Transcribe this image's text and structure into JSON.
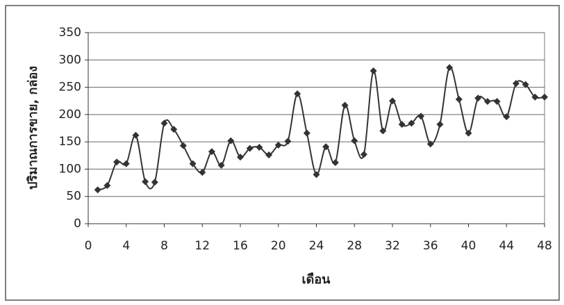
{
  "chart_data": {
    "type": "line",
    "x_label": "เดือน",
    "y_label": "ปริมาณการขาย, กล่อง",
    "x": [
      1,
      2,
      3,
      4,
      5,
      6,
      7,
      8,
      9,
      10,
      11,
      12,
      13,
      14,
      15,
      16,
      17,
      18,
      19,
      20,
      21,
      22,
      23,
      24,
      25,
      26,
      27,
      28,
      29,
      30,
      31,
      32,
      33,
      34,
      35,
      36,
      37,
      38,
      39,
      40,
      41,
      42,
      43,
      44,
      45,
      46,
      47,
      48
    ],
    "series": [
      {
        "color": "#333333",
        "values": [
          62,
          70,
          113,
          110,
          162,
          77,
          76,
          184,
          173,
          143,
          110,
          94,
          132,
          107,
          152,
          122,
          138,
          140,
          126,
          144,
          151,
          238,
          166,
          90,
          141,
          112,
          217,
          152,
          127,
          280,
          170,
          225,
          182,
          184,
          197,
          146,
          182,
          286,
          228,
          166,
          230,
          224,
          224,
          196,
          257,
          255,
          232,
          232
        ]
      }
    ],
    "xlim": [
      0,
      48
    ],
    "xticks": [
      0,
      4,
      8,
      12,
      16,
      20,
      24,
      28,
      32,
      36,
      40,
      44,
      48
    ],
    "ylim": [
      0,
      350
    ],
    "yticks": [
      0,
      50,
      100,
      150,
      200,
      250,
      300,
      350
    ],
    "grid": true,
    "smooth": true
  }
}
